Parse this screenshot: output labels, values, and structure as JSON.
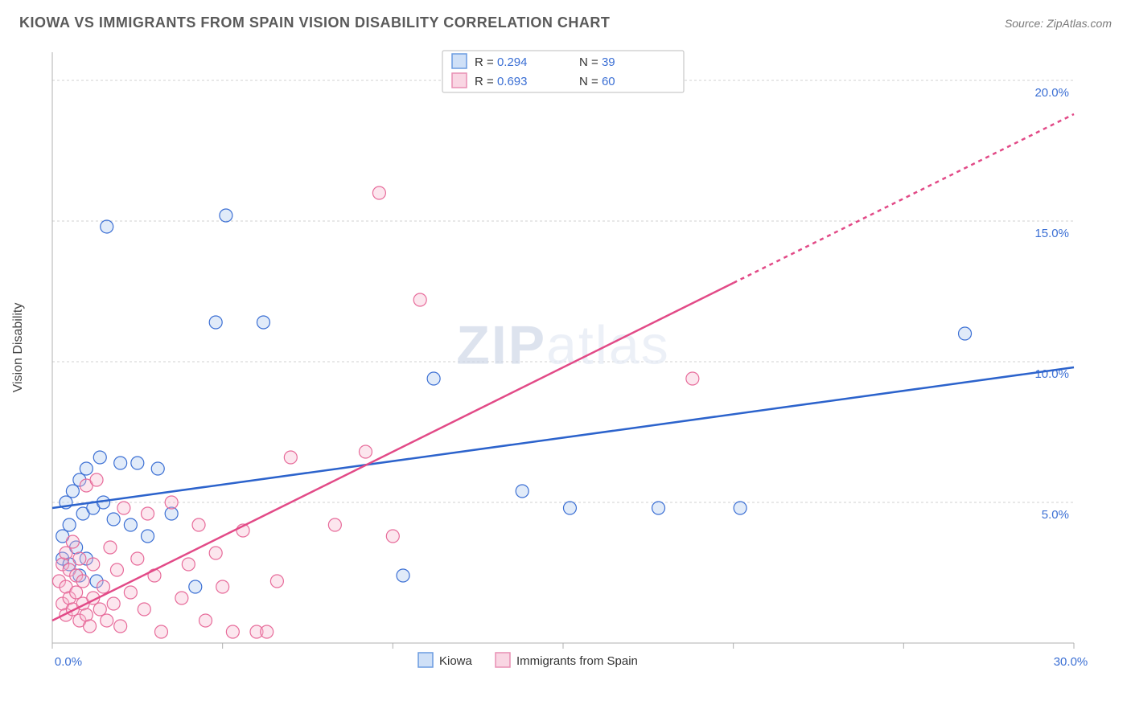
{
  "title": "KIOWA VS IMMIGRANTS FROM SPAIN VISION DISABILITY CORRELATION CHART",
  "source": "Source: ZipAtlas.com",
  "ylabel": "Vision Disability",
  "watermark": "ZIPatlas",
  "chart": {
    "type": "scatter-correlation",
    "xlim": [
      0,
      30
    ],
    "ylim": [
      0,
      21
    ],
    "xticks": [
      0,
      5,
      10,
      15,
      20,
      25,
      30
    ],
    "yticks": [
      5,
      10,
      15,
      20
    ],
    "xtick_suffix": "%",
    "ytick_suffix": "%",
    "xtick_decimals": 1,
    "ytick_decimals": 1,
    "background_color": "#ffffff",
    "grid_color": "#d0d0d0",
    "axis_color": "#b0b0b0",
    "value_color": "#3b6fd4",
    "marker_radius": 8,
    "marker_stroke_width": 1.2,
    "marker_fill_opacity": 0.35,
    "trend_line_width": 2.5,
    "trend_dash": "5,5"
  },
  "series": [
    {
      "name": "Kiowa",
      "stroke": "#3b6fd4",
      "fill": "#a9c5ee",
      "line_color": "#2c63cc",
      "r": 0.294,
      "n": 39,
      "trend": {
        "x1": 0,
        "y1": 4.8,
        "x2": 30,
        "y2": 9.8,
        "solid_until_x": 30
      },
      "points": [
        [
          0.3,
          3.0
        ],
        [
          0.3,
          3.8
        ],
        [
          0.4,
          5.0
        ],
        [
          0.5,
          2.8
        ],
        [
          0.5,
          4.2
        ],
        [
          0.6,
          5.4
        ],
        [
          0.7,
          3.4
        ],
        [
          0.8,
          5.8
        ],
        [
          0.8,
          2.4
        ],
        [
          0.9,
          4.6
        ],
        [
          1.0,
          6.2
        ],
        [
          1.0,
          3.0
        ],
        [
          1.2,
          4.8
        ],
        [
          1.3,
          2.2
        ],
        [
          1.4,
          6.6
        ],
        [
          1.5,
          5.0
        ],
        [
          1.6,
          14.8
        ],
        [
          1.8,
          4.4
        ],
        [
          2.0,
          6.4
        ],
        [
          2.3,
          4.2
        ],
        [
          2.5,
          6.4
        ],
        [
          2.8,
          3.8
        ],
        [
          3.1,
          6.2
        ],
        [
          3.5,
          4.6
        ],
        [
          4.2,
          2.0
        ],
        [
          4.8,
          11.4
        ],
        [
          5.1,
          15.2
        ],
        [
          6.2,
          11.4
        ],
        [
          10.3,
          2.4
        ],
        [
          11.2,
          9.4
        ],
        [
          13.8,
          5.4
        ],
        [
          15.2,
          4.8
        ],
        [
          17.8,
          4.8
        ],
        [
          20.2,
          4.8
        ],
        [
          26.8,
          11.0
        ]
      ]
    },
    {
      "name": "Immigrants from Spain",
      "stroke": "#e76b9a",
      "fill": "#f5b8cf",
      "line_color": "#e24a87",
      "r": 0.693,
      "n": 60,
      "trend": {
        "x1": 0,
        "y1": 0.8,
        "x2": 30,
        "y2": 18.8,
        "solid_until_x": 20
      },
      "points": [
        [
          0.2,
          2.2
        ],
        [
          0.3,
          1.4
        ],
        [
          0.3,
          2.8
        ],
        [
          0.4,
          1.0
        ],
        [
          0.4,
          2.0
        ],
        [
          0.4,
          3.2
        ],
        [
          0.5,
          1.6
        ],
        [
          0.5,
          2.6
        ],
        [
          0.6,
          1.2
        ],
        [
          0.6,
          3.6
        ],
        [
          0.7,
          1.8
        ],
        [
          0.7,
          2.4
        ],
        [
          0.8,
          0.8
        ],
        [
          0.8,
          3.0
        ],
        [
          0.9,
          1.4
        ],
        [
          0.9,
          2.2
        ],
        [
          1.0,
          1.0
        ],
        [
          1.0,
          5.6
        ],
        [
          1.1,
          0.6
        ],
        [
          1.2,
          2.8
        ],
        [
          1.2,
          1.6
        ],
        [
          1.3,
          5.8
        ],
        [
          1.4,
          1.2
        ],
        [
          1.5,
          2.0
        ],
        [
          1.6,
          0.8
        ],
        [
          1.7,
          3.4
        ],
        [
          1.8,
          1.4
        ],
        [
          1.9,
          2.6
        ],
        [
          2.0,
          0.6
        ],
        [
          2.1,
          4.8
        ],
        [
          2.3,
          1.8
        ],
        [
          2.5,
          3.0
        ],
        [
          2.7,
          1.2
        ],
        [
          2.8,
          4.6
        ],
        [
          3.0,
          2.4
        ],
        [
          3.2,
          0.4
        ],
        [
          3.5,
          5.0
        ],
        [
          3.8,
          1.6
        ],
        [
          4.0,
          2.8
        ],
        [
          4.3,
          4.2
        ],
        [
          4.5,
          0.8
        ],
        [
          4.8,
          3.2
        ],
        [
          5.0,
          2.0
        ],
        [
          5.3,
          0.4
        ],
        [
          5.6,
          4.0
        ],
        [
          6.0,
          0.4
        ],
        [
          6.3,
          0.4
        ],
        [
          6.6,
          2.2
        ],
        [
          7.0,
          6.6
        ],
        [
          8.3,
          4.2
        ],
        [
          9.2,
          6.8
        ],
        [
          9.6,
          16.0
        ],
        [
          10.0,
          3.8
        ],
        [
          10.8,
          12.2
        ],
        [
          18.8,
          9.4
        ]
      ]
    }
  ],
  "legend_top": {
    "rows": [
      {
        "swatch_stroke": "#6a9be0",
        "swatch_fill": "#cfe0f7",
        "r_label": "R = ",
        "n_label": "N = "
      },
      {
        "swatch_stroke": "#e88fb4",
        "swatch_fill": "#f9d6e3",
        "r_label": "R = ",
        "n_label": "N = "
      }
    ]
  },
  "legend_bottom": {
    "items": [
      {
        "label": "Kiowa",
        "swatch_stroke": "#6a9be0",
        "swatch_fill": "#cfe0f7"
      },
      {
        "label": "Immigrants from Spain",
        "swatch_stroke": "#e88fb4",
        "swatch_fill": "#f9d6e3"
      }
    ]
  }
}
